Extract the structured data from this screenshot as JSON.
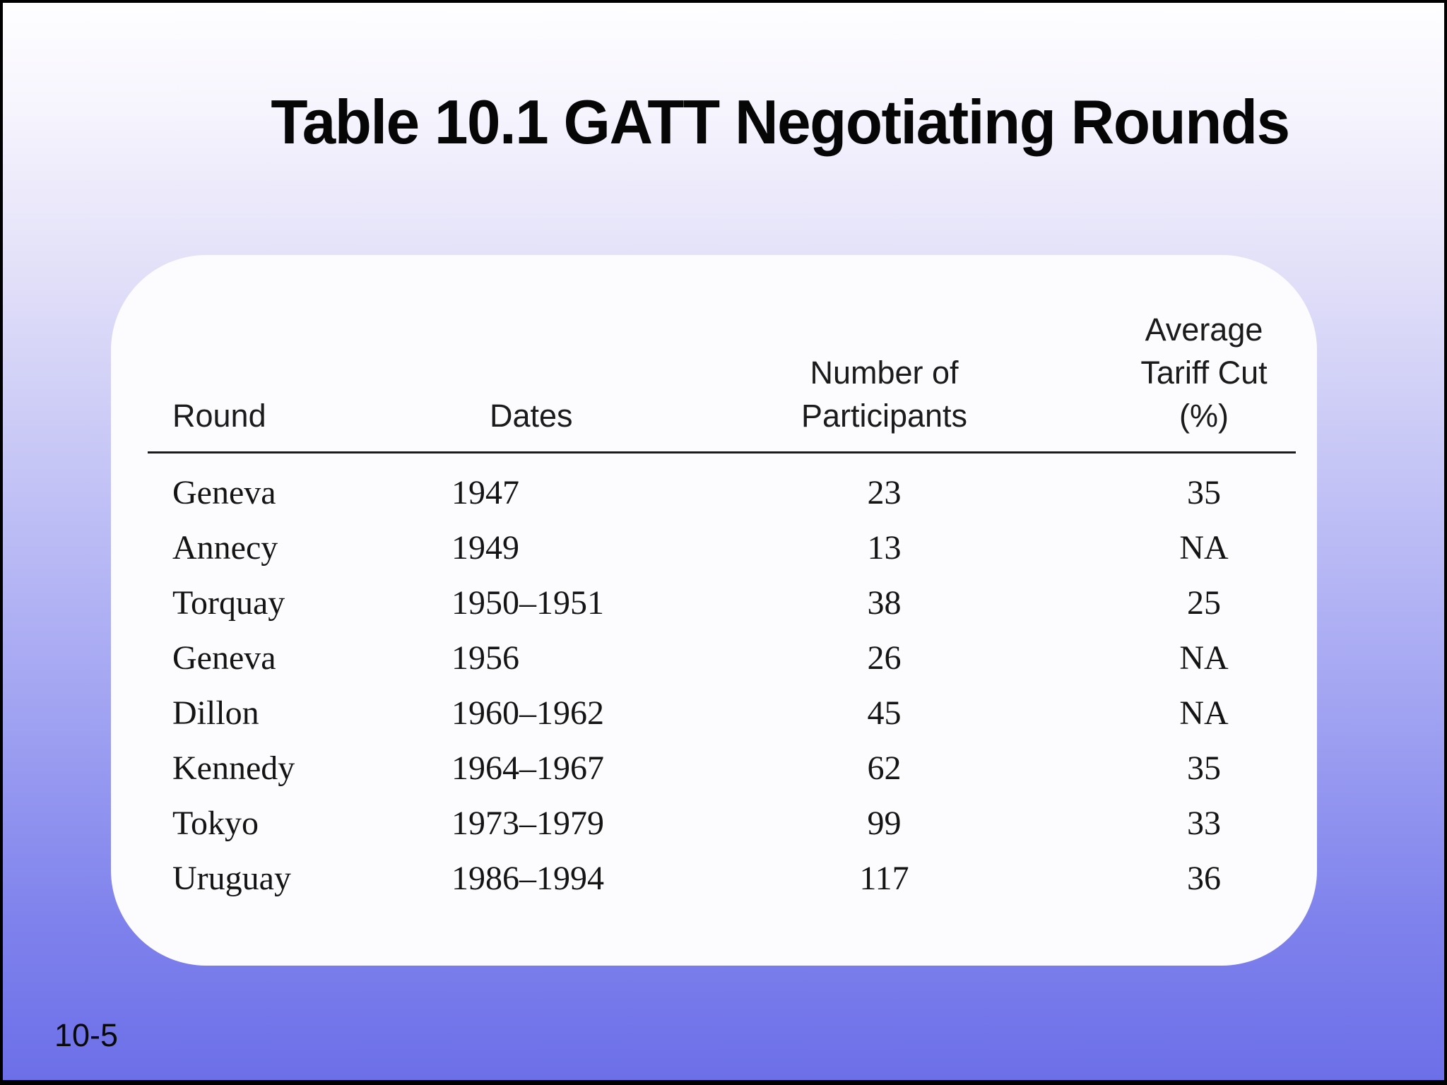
{
  "slide": {
    "title": "Table 10.1 GATT Negotiating Rounds",
    "page_number": "10-5"
  },
  "table": {
    "headers": {
      "round": "Round",
      "dates": "Dates",
      "participants_line1": "Number of",
      "participants_line2": "Participants",
      "tariff_line1": "Average",
      "tariff_line2": "Tariff Cut",
      "tariff_line3": "(%)"
    },
    "rows": [
      {
        "round": "Geneva",
        "dates": "1947",
        "participants": "23",
        "tariff_cut": "35"
      },
      {
        "round": "Annecy",
        "dates": "1949",
        "participants": "13",
        "tariff_cut": "NA"
      },
      {
        "round": "Torquay",
        "dates": "1950–1951",
        "participants": "38",
        "tariff_cut": "25"
      },
      {
        "round": "Geneva",
        "dates": "1956",
        "participants": "26",
        "tariff_cut": "NA"
      },
      {
        "round": "Dillon",
        "dates": "1960–1962",
        "participants": "45",
        "tariff_cut": "NA"
      },
      {
        "round": "Kennedy",
        "dates": "1964–1967",
        "participants": "62",
        "tariff_cut": "35"
      },
      {
        "round": "Tokyo",
        "dates": "1973–1979",
        "participants": "99",
        "tariff_cut": "33"
      },
      {
        "round": "Uruguay",
        "dates": "1986–1994",
        "participants": "117",
        "tariff_cut": "36"
      }
    ]
  },
  "colors": {
    "background_gradient_top": "#fefeff",
    "background_gradient_bottom": "#6c6fe8",
    "card_background": "#fcfcfe",
    "text": "#141414",
    "rule": "#1b1b1b",
    "frame_border": "#000000"
  }
}
